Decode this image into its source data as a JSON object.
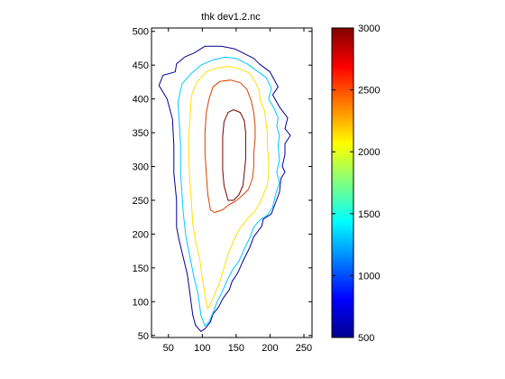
{
  "chart_data": {
    "type": "contour",
    "title": "thk dev1.2.nc",
    "xlabel": "",
    "ylabel": "",
    "xlim": [
      25,
      262
    ],
    "ylim": [
      47,
      505
    ],
    "x_ticks": [
      "50",
      "100",
      "150",
      "200",
      "250"
    ],
    "y_ticks": [
      "50",
      "100",
      "150",
      "200",
      "250",
      "300",
      "350",
      "400",
      "450",
      "500"
    ],
    "x_tick_values": [
      50,
      100,
      150,
      200,
      250
    ],
    "y_tick_values": [
      50,
      100,
      150,
      200,
      250,
      300,
      350,
      400,
      450,
      500
    ],
    "colorbar": {
      "range": [
        500,
        3000
      ],
      "ticks": [
        "500",
        "1000",
        "1500",
        "2000",
        "2500",
        "3000"
      ],
      "tick_values": [
        500,
        1000,
        1500,
        2000,
        2500,
        3000
      ],
      "colormap": "jet"
    },
    "contour_levels": [
      {
        "level": 500,
        "color": "#00008f",
        "points": [
          [
            98,
            56
          ],
          [
            90,
            65
          ],
          [
            86,
            80
          ],
          [
            82,
            110
          ],
          [
            78,
            140
          ],
          [
            72,
            165
          ],
          [
            66,
            190
          ],
          [
            62,
            210
          ],
          [
            62,
            250
          ],
          [
            58,
            290
          ],
          [
            58,
            330
          ],
          [
            56,
            370
          ],
          [
            48,
            400
          ],
          [
            36,
            420
          ],
          [
            42,
            435
          ],
          [
            60,
            440
          ],
          [
            62,
            452
          ],
          [
            74,
            462
          ],
          [
            88,
            468
          ],
          [
            104,
            478
          ],
          [
            128,
            478
          ],
          [
            148,
            474
          ],
          [
            164,
            466
          ],
          [
            176,
            460
          ],
          [
            184,
            452
          ],
          [
            200,
            440
          ],
          [
            212,
            418
          ],
          [
            204,
            406
          ],
          [
            214,
            388
          ],
          [
            226,
            372
          ],
          [
            222,
            356
          ],
          [
            230,
            346
          ],
          [
            222,
            334
          ],
          [
            222,
            318
          ],
          [
            218,
            300
          ],
          [
            222,
            292
          ],
          [
            216,
            282
          ],
          [
            214,
            262
          ],
          [
            208,
            246
          ],
          [
            202,
            230
          ],
          [
            190,
            222
          ],
          [
            188,
            212
          ],
          [
            176,
            196
          ],
          [
            170,
            180
          ],
          [
            160,
            160
          ],
          [
            152,
            142
          ],
          [
            144,
            130
          ],
          [
            140,
            118
          ],
          [
            130,
            104
          ],
          [
            124,
            92
          ],
          [
            116,
            82
          ],
          [
            112,
            70
          ],
          [
            104,
            60
          ],
          [
            98,
            56
          ]
        ]
      },
      {
        "level": 1500,
        "color": "#00c8ff",
        "points": [
          [
            104,
            64
          ],
          [
            98,
            80
          ],
          [
            94,
            110
          ],
          [
            88,
            135
          ],
          [
            82,
            165
          ],
          [
            76,
            195
          ],
          [
            72,
            230
          ],
          [
            70,
            260
          ],
          [
            68,
            290
          ],
          [
            68,
            330
          ],
          [
            66,
            365
          ],
          [
            64,
            395
          ],
          [
            70,
            422
          ],
          [
            84,
            438
          ],
          [
            98,
            450
          ],
          [
            116,
            458
          ],
          [
            134,
            462
          ],
          [
            150,
            460
          ],
          [
            166,
            452
          ],
          [
            180,
            442
          ],
          [
            194,
            432
          ],
          [
            202,
            416
          ],
          [
            198,
            400
          ],
          [
            206,
            386
          ],
          [
            212,
            372
          ],
          [
            210,
            360
          ],
          [
            214,
            346
          ],
          [
            212,
            330
          ],
          [
            214,
            310
          ],
          [
            210,
            292
          ],
          [
            214,
            276
          ],
          [
            208,
            258
          ],
          [
            204,
            240
          ],
          [
            196,
            228
          ],
          [
            184,
            220
          ],
          [
            176,
            210
          ],
          [
            170,
            194
          ],
          [
            162,
            178
          ],
          [
            154,
            160
          ],
          [
            144,
            146
          ],
          [
            136,
            130
          ],
          [
            130,
            116
          ],
          [
            122,
            100
          ],
          [
            116,
            84
          ],
          [
            110,
            70
          ],
          [
            104,
            64
          ]
        ]
      },
      {
        "level": 2000,
        "color": "#ffe000",
        "points": [
          [
            108,
            90
          ],
          [
            104,
            110
          ],
          [
            100,
            135
          ],
          [
            96,
            165
          ],
          [
            90,
            190
          ],
          [
            86,
            215
          ],
          [
            84,
            245
          ],
          [
            82,
            275
          ],
          [
            80,
            310
          ],
          [
            80,
            345
          ],
          [
            82,
            375
          ],
          [
            84,
            405
          ],
          [
            92,
            425
          ],
          [
            106,
            440
          ],
          [
            122,
            446
          ],
          [
            140,
            448
          ],
          [
            156,
            444
          ],
          [
            170,
            438
          ],
          [
            178,
            426
          ],
          [
            184,
            412
          ],
          [
            186,
            396
          ],
          [
            192,
            382
          ],
          [
            194,
            366
          ],
          [
            196,
            350
          ],
          [
            196,
            330
          ],
          [
            198,
            310
          ],
          [
            198,
            290
          ],
          [
            196,
            272
          ],
          [
            190,
            258
          ],
          [
            184,
            244
          ],
          [
            176,
            232
          ],
          [
            166,
            222
          ],
          [
            154,
            206
          ],
          [
            146,
            190
          ],
          [
            138,
            170
          ],
          [
            132,
            150
          ],
          [
            126,
            130
          ],
          [
            118,
            110
          ],
          [
            112,
            96
          ],
          [
            108,
            90
          ]
        ]
      },
      {
        "level": 2500,
        "color": "#d84000",
        "points": [
          [
            112,
            236
          ],
          [
            108,
            260
          ],
          [
            106,
            290
          ],
          [
            104,
            320
          ],
          [
            104,
            350
          ],
          [
            106,
            380
          ],
          [
            110,
            400
          ],
          [
            116,
            418
          ],
          [
            126,
            426
          ],
          [
            142,
            428
          ],
          [
            156,
            424
          ],
          [
            166,
            414
          ],
          [
            172,
            398
          ],
          [
            176,
            380
          ],
          [
            178,
            360
          ],
          [
            178,
            340
          ],
          [
            176,
            320
          ],
          [
            176,
            300
          ],
          [
            174,
            282
          ],
          [
            168,
            266
          ],
          [
            158,
            256
          ],
          [
            148,
            248
          ],
          [
            140,
            244
          ],
          [
            130,
            236
          ],
          [
            118,
            232
          ],
          [
            112,
            236
          ]
        ]
      },
      {
        "level": 3000,
        "color": "#7a0000",
        "points": [
          [
            138,
            250
          ],
          [
            132,
            272
          ],
          [
            130,
            296
          ],
          [
            130,
            320
          ],
          [
            130,
            344
          ],
          [
            132,
            366
          ],
          [
            138,
            380
          ],
          [
            146,
            384
          ],
          [
            156,
            380
          ],
          [
            162,
            368
          ],
          [
            164,
            350
          ],
          [
            164,
            330
          ],
          [
            164,
            310
          ],
          [
            162,
            290
          ],
          [
            160,
            272
          ],
          [
            154,
            258
          ],
          [
            146,
            250
          ],
          [
            138,
            250
          ]
        ]
      }
    ]
  }
}
